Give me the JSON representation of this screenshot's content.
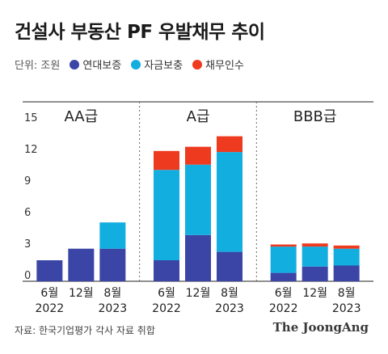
{
  "title": "건설사 부동산 PF 우발채무 추이",
  "unit_label": "단위: 조원",
  "source": "자료: 한국기업평가 각사 자료 취합",
  "logo": "The JoongAng",
  "chart_data": {
    "type": "bar",
    "stacked": true,
    "ylim": [
      0,
      15
    ],
    "yticks": [
      0,
      3,
      6,
      9,
      12,
      15
    ],
    "grid": false,
    "legend_position": "top-left",
    "series": [
      {
        "name": "연대보증",
        "color": "#3b45a6"
      },
      {
        "name": "자금보충",
        "color": "#12aee0"
      },
      {
        "name": "채무인수",
        "color": "#ee3a1f"
      }
    ],
    "groups": [
      {
        "label": "AA급",
        "bars": [
          {
            "month": "6월",
            "year": "2022",
            "values": [
              2.0,
              0,
              0
            ]
          },
          {
            "month": "12월",
            "year": "",
            "values": [
              3.1,
              0,
              0
            ]
          },
          {
            "month": "8월",
            "year": "2023",
            "values": [
              3.1,
              2.5,
              0
            ]
          }
        ]
      },
      {
        "label": "A급",
        "bars": [
          {
            "month": "6월",
            "year": "2022",
            "values": [
              2.0,
              8.6,
              1.8
            ]
          },
          {
            "month": "12월",
            "year": "",
            "values": [
              4.4,
              6.7,
              1.7
            ]
          },
          {
            "month": "8월",
            "year": "2023",
            "values": [
              2.8,
              9.5,
              1.5
            ]
          }
        ]
      },
      {
        "label": "BBB급",
        "bars": [
          {
            "month": "6월",
            "year": "2022",
            "values": [
              0.8,
              2.5,
              0.2
            ]
          },
          {
            "month": "12월",
            "year": "",
            "values": [
              1.4,
              1.9,
              0.3
            ]
          },
          {
            "month": "8월",
            "year": "2023",
            "values": [
              1.5,
              1.6,
              0.3
            ]
          }
        ]
      }
    ]
  }
}
